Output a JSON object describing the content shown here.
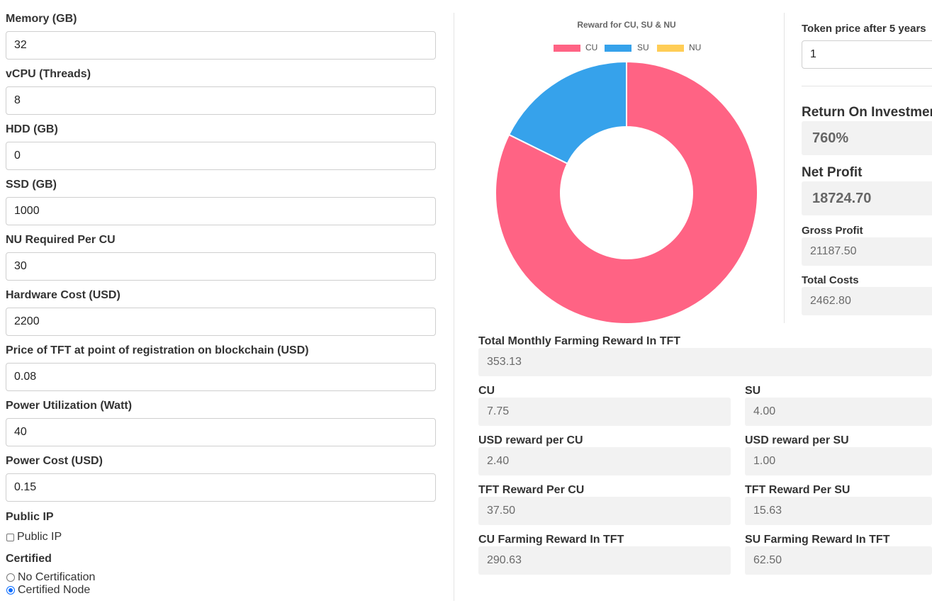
{
  "left_form": {
    "memory": {
      "label": "Memory (GB)",
      "value": "32"
    },
    "vcpu": {
      "label": "vCPU (Threads)",
      "value": "8"
    },
    "hdd": {
      "label": "HDD (GB)",
      "value": "0"
    },
    "ssd": {
      "label": "SSD (GB)",
      "value": "1000"
    },
    "nu_per_cu": {
      "label": "NU Required Per CU",
      "value": "30"
    },
    "hardware_cost": {
      "label": "Hardware Cost (USD)",
      "value": "2200"
    },
    "tft_price": {
      "label": "Price of TFT at point of registration on blockchain (USD)",
      "value": "0.08"
    },
    "power_util": {
      "label": "Power Utilization (Watt)",
      "value": "40"
    },
    "power_cost": {
      "label": "Power Cost (USD)",
      "value": "0.15"
    },
    "public_ip": {
      "label": "Public IP",
      "checkbox_label": "Public IP",
      "checked": false
    },
    "certified": {
      "label": "Certified",
      "options": [
        "No Certification",
        "Certified Node"
      ],
      "selected": "Certified Node"
    }
  },
  "chart_data": {
    "type": "pie",
    "title": "Reward for CU, SU & NU",
    "categories": [
      "CU",
      "SU",
      "NU"
    ],
    "values": [
      290.63,
      62.5,
      0
    ],
    "colors": [
      "#ff6384",
      "#36a2eb",
      "#ffcd56"
    ],
    "legend": "top",
    "donut": true
  },
  "right_panel": {
    "token_price": {
      "label": "Token price after 5 years",
      "value": "1"
    },
    "roi": {
      "label": "Return On Investment",
      "value": "760%"
    },
    "net_profit": {
      "label": "Net Profit",
      "value": "18724.70"
    },
    "gross_profit": {
      "label": "Gross Profit",
      "value": "21187.50"
    },
    "total_costs": {
      "label": "Total Costs",
      "value": "2462.80"
    }
  },
  "results": {
    "total_monthly": {
      "label": "Total Monthly Farming Reward In TFT",
      "value": "353.13"
    },
    "cu": {
      "label": "CU",
      "value": "7.75"
    },
    "su": {
      "label": "SU",
      "value": "4.00"
    },
    "usd_per_cu": {
      "label": "USD reward per CU",
      "value": "2.40"
    },
    "usd_per_su": {
      "label": "USD reward per SU",
      "value": "1.00"
    },
    "tft_per_cu": {
      "label": "TFT Reward Per CU",
      "value": "37.50"
    },
    "tft_per_su": {
      "label": "TFT Reward Per SU",
      "value": "15.63"
    },
    "cu_farming": {
      "label": "CU Farming Reward In TFT",
      "value": "290.63"
    },
    "su_farming": {
      "label": "SU Farming Reward In TFT",
      "value": "62.50"
    }
  }
}
